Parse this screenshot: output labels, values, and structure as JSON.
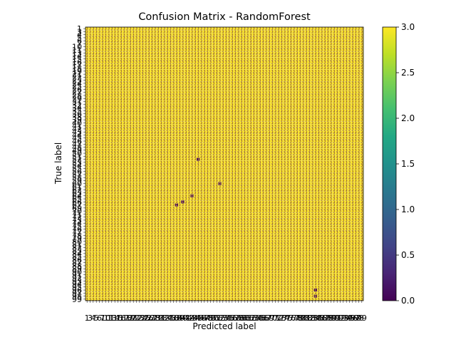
{
  "chart_data": {
    "type": "heatmap",
    "title": "Confusion Matrix - RandomForest",
    "xlabel": "Predicted label",
    "ylabel": "True label",
    "labels": [
      1,
      3,
      4,
      5,
      6,
      7,
      10,
      11,
      13,
      14,
      15,
      16,
      17,
      18,
      19,
      21,
      22,
      23,
      24,
      25,
      26,
      27,
      28,
      29,
      31,
      32,
      34,
      35,
      36,
      38,
      39,
      40,
      41,
      42,
      43,
      44,
      45,
      46,
      47,
      48,
      49,
      50,
      51,
      52,
      53,
      54,
      55,
      56,
      57,
      58,
      59,
      60,
      61,
      62,
      63,
      64,
      65,
      66,
      67,
      69,
      70,
      71,
      72,
      73,
      74,
      75,
      76,
      77,
      78,
      79,
      80,
      81,
      82,
      83,
      84,
      85,
      86,
      87,
      88,
      89,
      90,
      91,
      92,
      93,
      94,
      95,
      96,
      97,
      98,
      99
    ],
    "dominant_value": 3,
    "low_cells": [
      [
        43,
        36,
        1
      ],
      [
        51,
        43,
        0
      ],
      [
        55,
        34,
        0
      ],
      [
        58,
        29,
        1
      ],
      [
        57,
        31,
        1
      ],
      [
        88,
        74,
        0
      ],
      [
        86,
        74,
        1
      ]
    ],
    "colorbar": {
      "min": 0.0,
      "max": 3.0,
      "ticks": [
        "0.0",
        "0.5",
        "1.0",
        "1.5",
        "2.0",
        "2.5",
        "3.0"
      ],
      "colormap": "viridis"
    },
    "colors": {
      "high": "#fde725",
      "low": "#440154",
      "annotation": "#440154",
      "grid": "#d8d0a0"
    }
  }
}
